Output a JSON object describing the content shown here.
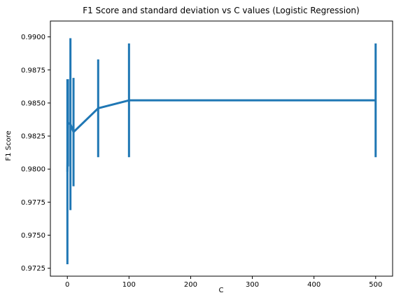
{
  "chart_data": {
    "type": "line",
    "title": "F1 Score and standard deviation vs C values (Logistic Regression)",
    "xlabel": "C",
    "ylabel": "F1 Score",
    "xlim": [
      -27.5,
      527.5
    ],
    "ylim": [
      0.9719,
      0.9912
    ],
    "xticks": [
      0,
      100,
      200,
      300,
      400,
      500
    ],
    "yticks": [
      0.9725,
      0.975,
      0.9775,
      0.98,
      0.9825,
      0.985,
      0.9875,
      0.99
    ],
    "ytick_labels": [
      "0.9725",
      "0.9750",
      "0.9775",
      "0.9800",
      "0.9825",
      "0.9850",
      "0.9875",
      "0.9900"
    ],
    "grid": false,
    "color": "#1f77b4",
    "series": [
      {
        "x": [
          0.1,
          1,
          5,
          10,
          50,
          100,
          500
        ],
        "y": [
          0.9798,
          0.9835,
          0.9834,
          0.9828,
          0.9846,
          0.9852,
          0.9852
        ],
        "err": [
          0.007,
          0.0033,
          0.0065,
          0.0041,
          0.0037,
          0.0043,
          0.0043
        ]
      }
    ]
  }
}
